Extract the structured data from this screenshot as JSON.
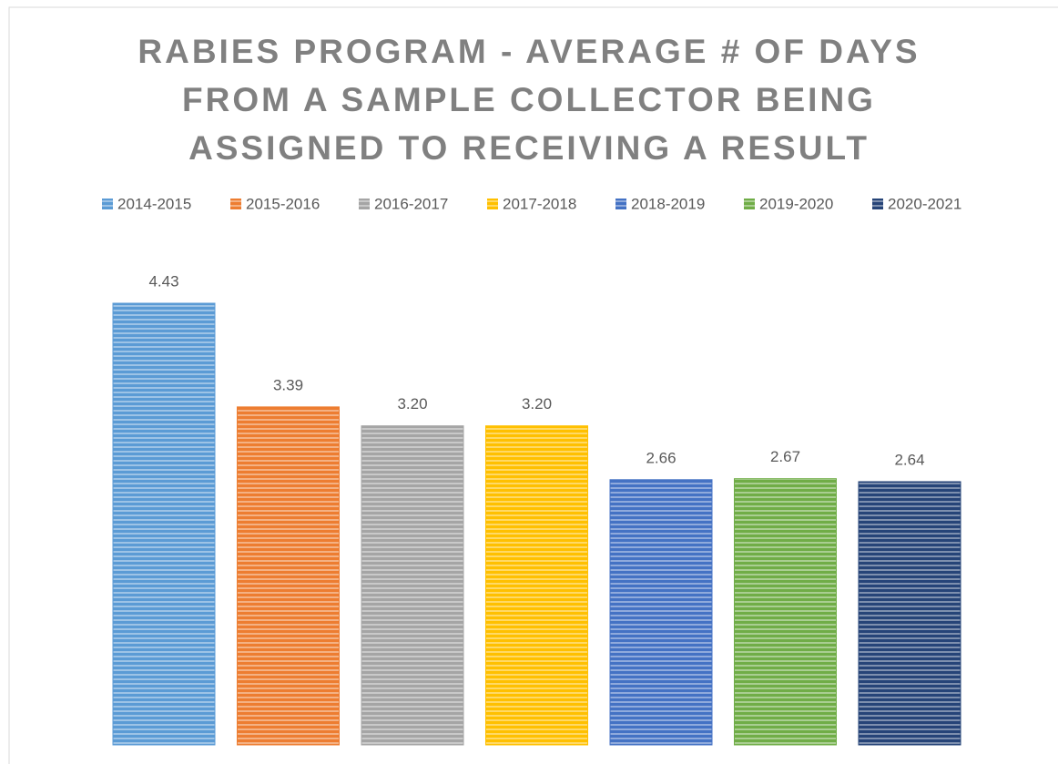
{
  "chart_data": {
    "type": "bar",
    "title": "RABIES PROGRAM - AVERAGE # OF DAYS FROM A SAMPLE COLLECTOR BEING ASSIGNED TO RECEIVING A RESULT",
    "legend": "top",
    "series": [
      {
        "name": "2014-2015",
        "color": "#5b9bd5",
        "values": [
          4.43
        ],
        "value_labels": [
          "4.43"
        ]
      },
      {
        "name": "2015-2016",
        "color": "#ed7d31",
        "values": [
          3.39
        ],
        "value_labels": [
          "3.39"
        ]
      },
      {
        "name": "2016-2017",
        "color": "#a5a5a5",
        "values": [
          3.2
        ],
        "value_labels": [
          "3.20"
        ]
      },
      {
        "name": "2017-2018",
        "color": "#ffc000",
        "values": [
          3.2
        ],
        "value_labels": [
          "3.20"
        ]
      },
      {
        "name": "2018-2019",
        "color": "#4472c4",
        "values": [
          2.66
        ],
        "value_labels": [
          "2.66"
        ]
      },
      {
        "name": "2019-2020",
        "color": "#70ad47",
        "values": [
          2.67
        ],
        "value_labels": [
          "2.67"
        ]
      },
      {
        "name": "2020-2021",
        "color": "#264478",
        "values": [
          2.64
        ],
        "value_labels": [
          "2.64"
        ]
      }
    ]
  }
}
